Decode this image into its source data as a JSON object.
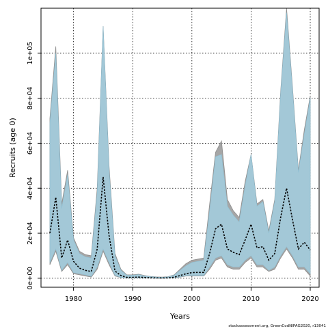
{
  "chart_data": {
    "type": "area",
    "title": "",
    "xlabel": "Years",
    "ylabel": "Recruits (age 0)",
    "xlim": [
      1974.5,
      2021.5
    ],
    "ylim": [
      -4000,
      120000
    ],
    "x_ticks": [
      1980,
      1990,
      2000,
      2010,
      2020
    ],
    "x_tick_labels": [
      "1980",
      "1990",
      "2000",
      "2010",
      "2020"
    ],
    "y_ticks": [
      0,
      20000,
      40000,
      60000,
      80000,
      100000
    ],
    "y_tick_labels": [
      "0e+00",
      "2e+04",
      "4e+04",
      "6e+04",
      "8e+04",
      "1e+05"
    ],
    "grid": true,
    "grid_style": "dotted",
    "colors": {
      "outer_band": "#a6a6a6",
      "inner_band": "#a3c8d7",
      "inner_band_edge": "#8fc0d4",
      "median_line": "#000000",
      "grid": "#000000"
    },
    "years": [
      1976,
      1977,
      1978,
      1979,
      1980,
      1981,
      1982,
      1983,
      1984,
      1985,
      1986,
      1987,
      1988,
      1989,
      1990,
      1991,
      1992,
      1993,
      1994,
      1995,
      1996,
      1997,
      1998,
      1999,
      2000,
      2001,
      2002,
      2003,
      2004,
      2005,
      2006,
      2007,
      2008,
      2009,
      2010,
      2011,
      2012,
      2013,
      2014,
      2015,
      2016,
      2017,
      2018,
      2019,
      2020
    ],
    "series": [
      {
        "type": "band",
        "role": "outer",
        "upper": [
          71000,
          103000,
          33000,
          48000,
          18000,
          12000,
          10500,
          10000,
          40000,
          112000,
          50000,
          11000,
          4000,
          1500,
          1500,
          1800,
          1200,
          800,
          600,
          500,
          700,
          1500,
          4000,
          6500,
          8000,
          8500,
          9000,
          33000,
          56000,
          61000,
          35000,
          30000,
          27000,
          43000,
          55000,
          33000,
          35000,
          21000,
          35000,
          83000,
          120000,
          85000,
          48000,
          66000,
          81000
        ],
        "lower": [
          6000,
          12000,
          3000,
          6000,
          2000,
          1500,
          1000,
          500,
          4000,
          12000,
          6000,
          1000,
          300,
          100,
          100,
          150,
          100,
          60,
          50,
          40,
          60,
          150,
          500,
          1000,
          1000,
          1000,
          1000,
          4000,
          8000,
          9000,
          5000,
          4000,
          4000,
          7000,
          9000,
          5000,
          5000,
          3000,
          4000,
          9000,
          13000,
          9000,
          4000,
          4000,
          1000
        ]
      },
      {
        "type": "band",
        "role": "inner",
        "upper": [
          69000,
          100000,
          31000,
          46000,
          17000,
          11000,
          9500,
          9000,
          38000,
          112000,
          48000,
          10000,
          3500,
          1300,
          1300,
          1600,
          1000,
          700,
          500,
          400,
          600,
          1300,
          3500,
          5500,
          7000,
          7500,
          8000,
          30000,
          54000,
          55000,
          32000,
          28000,
          25000,
          41000,
          55000,
          32000,
          34000,
          20000,
          34000,
          82000,
          118000,
          84000,
          47000,
          64000,
          80000
        ],
        "lower": [
          7000,
          13000,
          3500,
          7000,
          2500,
          2000,
          1500,
          800,
          5000,
          13000,
          7000,
          1300,
          400,
          150,
          150,
          200,
          150,
          80,
          60,
          50,
          80,
          200,
          600,
          1200,
          1200,
          1200,
          1200,
          5000,
          9000,
          10000,
          6000,
          5000,
          5000,
          8000,
          10000,
          6000,
          6000,
          3500,
          5000,
          10000,
          14000,
          10000,
          5000,
          5000,
          2000
        ]
      },
      {
        "type": "line",
        "role": "median",
        "values": [
          20000,
          36000,
          9000,
          17000,
          7500,
          4500,
          3500,
          3000,
          13000,
          45000,
          19000,
          3200,
          1200,
          400,
          400,
          500,
          350,
          200,
          150,
          120,
          180,
          450,
          1200,
          2000,
          2500,
          2600,
          2600,
          11000,
          22000,
          24000,
          13000,
          11500,
          10500,
          17000,
          24000,
          13500,
          14000,
          8000,
          11000,
          27000,
          40000,
          26000,
          13000,
          16000,
          12500
        ]
      }
    ],
    "footnote": "stockassessment.org, GreenCodNIPAG2020, r13041"
  }
}
